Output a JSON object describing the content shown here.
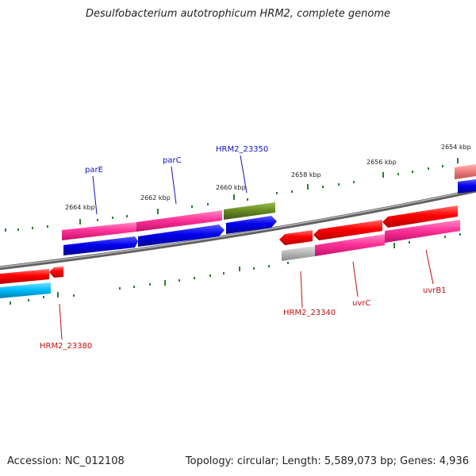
{
  "title": "Desulfobacterium autotrophicum HRM2, complete genome",
  "footer": {
    "accession": "Accession: NC_012108",
    "summary": "Topology: circular; Length: 5,589,073 bp; Genes: 4,936"
  },
  "scale_labels": [
    "2654 kbp",
    "2656 kbp",
    "2658 kbp",
    "2660 kbp",
    "2662 kbp",
    "2664 kbp"
  ],
  "gene_labels": {
    "parE": "parE",
    "parC": "parC",
    "hrm2_23350": "HRM2_23350",
    "hrm2_23340": "HRM2_23340",
    "uvrC": "uvrC",
    "uvrB1": "uvrB1",
    "hrm2_23380": "HRM2_23380"
  },
  "colors": {
    "backbone": "#808080",
    "cds_red": "#ff0000",
    "cds_blue": "#0000ee",
    "cds_magenta": "#ff3399",
    "cds_olive": "#6b8e23",
    "cds_cyan": "#00bfff",
    "cds_grey": "#b0b0b0",
    "tick_green": "#2e7d32",
    "label_blue": "#1010c0",
    "label_red": "#c01010"
  }
}
